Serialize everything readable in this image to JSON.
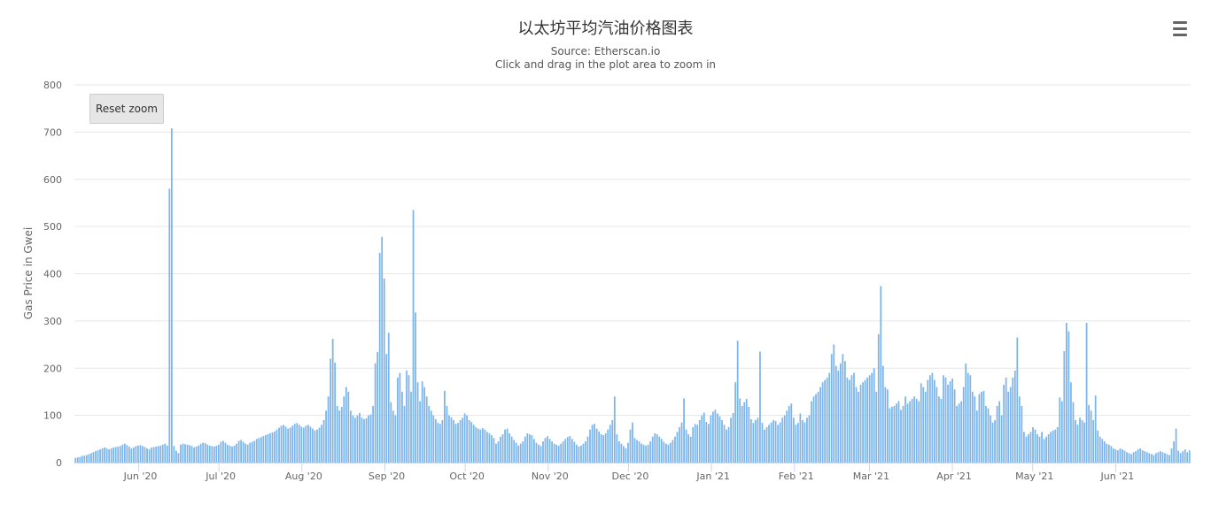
{
  "chart_data": {
    "type": "bar",
    "title": "以太坊平均汽油价格图表",
    "subtitle_lines": [
      "Source: Etherscan.io",
      "Click and drag in the plot area to zoom in"
    ],
    "ylabel": "Gas Price in Gwei",
    "xlabel": "",
    "ylim": [
      0,
      800
    ],
    "yticks": [
      0,
      100,
      200,
      300,
      400,
      500,
      600,
      700,
      800
    ],
    "x_start": "2020-05-08",
    "x_end": "2021-06-29",
    "xticks": [
      {
        "date": "2020-06-01",
        "label": "Jun '20"
      },
      {
        "date": "2020-07-01",
        "label": "Jul '20"
      },
      {
        "date": "2020-08-01",
        "label": "Aug '20"
      },
      {
        "date": "2020-09-01",
        "label": "Sep '20"
      },
      {
        "date": "2020-10-01",
        "label": "Oct '20"
      },
      {
        "date": "2020-11-01",
        "label": "Nov '20"
      },
      {
        "date": "2020-12-01",
        "label": "Dec '20"
      },
      {
        "date": "2021-01-01",
        "label": "Jan '21"
      },
      {
        "date": "2021-02-01",
        "label": "Feb '21"
      },
      {
        "date": "2021-03-01",
        "label": "Mar '21"
      },
      {
        "date": "2021-04-01",
        "label": "Apr '21"
      },
      {
        "date": "2021-05-01",
        "label": "May '21"
      },
      {
        "date": "2021-06-01",
        "label": "Jun '21"
      }
    ],
    "grid": true,
    "legend": "none",
    "bar_color": "#7cb5ec",
    "series": [
      {
        "values": [
          10,
          11,
          12,
          14,
          15,
          16,
          18,
          20,
          22,
          24,
          26,
          28,
          30,
          32,
          30,
          28,
          30,
          32,
          33,
          34,
          35,
          38,
          40,
          37,
          34,
          30,
          32,
          35,
          36,
          37,
          35,
          33,
          30,
          28,
          32,
          33,
          34,
          35,
          36,
          38,
          40,
          36,
          580,
          708,
          35,
          25,
          20,
          38,
          40,
          39,
          38,
          37,
          35,
          32,
          34,
          36,
          40,
          42,
          41,
          38,
          36,
          35,
          34,
          36,
          38,
          44,
          46,
          42,
          38,
          36,
          34,
          36,
          40,
          46,
          48,
          44,
          40,
          38,
          42,
          44,
          46,
          50,
          52,
          54,
          56,
          58,
          60,
          62,
          64,
          66,
          70,
          74,
          78,
          80,
          76,
          72,
          74,
          78,
          82,
          84,
          80,
          76,
          74,
          78,
          80,
          76,
          72,
          68,
          70,
          74,
          80,
          90,
          110,
          140,
          220,
          262,
          212,
          120,
          110,
          118,
          140,
          160,
          150,
          110,
          100,
          95,
          100,
          105,
          95,
          92,
          94,
          100,
          102,
          120,
          210,
          234,
          444,
          478,
          390,
          230,
          275,
          128,
          110,
          100,
          180,
          190,
          150,
          120,
          195,
          185,
          150,
          535,
          318,
          170,
          130,
          172,
          160,
          140,
          120,
          110,
          100,
          92,
          84,
          82,
          90,
          152,
          120,
          100,
          96,
          90,
          82,
          84,
          90,
          95,
          104,
          100,
          90,
          86,
          80,
          75,
          72,
          70,
          73,
          70,
          65,
          62,
          58,
          52,
          40,
          45,
          55,
          60,
          70,
          72,
          62,
          55,
          48,
          42,
          36,
          40,
          45,
          55,
          62,
          60,
          58,
          50,
          42,
          38,
          35,
          45,
          52,
          56,
          50,
          45,
          40,
          38,
          36,
          40,
          45,
          50,
          54,
          56,
          50,
          44,
          38,
          34,
          36,
          40,
          45,
          55,
          70,
          80,
          82,
          72,
          66,
          60,
          58,
          62,
          70,
          80,
          90,
          140,
          60,
          45,
          40,
          35,
          30,
          42,
          70,
          85,
          52,
          48,
          45,
          40,
          38,
          36,
          38,
          45,
          55,
          62,
          60,
          55,
          50,
          44,
          40,
          38,
          42,
          48,
          55,
          65,
          75,
          85,
          136,
          70,
          60,
          55,
          75,
          82,
          80,
          90,
          100,
          106,
          86,
          82,
          100,
          108,
          112,
          104,
          98,
          90,
          80,
          70,
          75,
          95,
          105,
          170,
          258,
          136,
          120,
          128,
          135,
          118,
          92,
          84,
          90,
          95,
          235,
          84,
          70,
          75,
          80,
          85,
          90,
          88,
          80,
          85,
          95,
          100,
          110,
          120,
          125,
          95,
          80,
          84,
          104,
          90,
          85,
          95,
          100,
          130,
          140,
          145,
          150,
          160,
          170,
          175,
          180,
          190,
          230,
          250,
          205,
          195,
          210,
          230,
          215,
          180,
          175,
          185,
          190,
          160,
          150,
          165,
          170,
          175,
          180,
          185,
          190,
          200,
          150,
          272,
          374,
          205,
          160,
          155,
          115,
          118,
          120,
          125,
          130,
          112,
          120,
          140,
          125,
          130,
          135,
          140,
          135,
          130,
          168,
          160,
          150,
          175,
          185,
          190,
          175,
          160,
          140,
          135,
          185,
          180,
          165,
          172,
          178,
          155,
          120,
          125,
          130,
          160,
          210,
          190,
          185,
          150,
          140,
          110,
          145,
          150,
          152,
          120,
          115,
          100,
          85,
          90,
          120,
          130,
          100,
          165,
          180,
          150,
          160,
          180,
          195,
          265,
          140,
          120,
          65,
          55,
          60,
          65,
          75,
          70,
          60,
          55,
          65,
          50,
          55,
          60,
          65,
          68,
          70,
          75,
          138,
          130,
          236,
          296,
          278,
          170,
          128,
          90,
          80,
          95,
          90,
          85,
          296,
          122,
          110,
          90,
          142,
          68,
          55,
          50,
          45,
          40,
          38,
          35,
          30,
          28,
          26,
          30,
          28,
          25,
          22,
          20,
          18,
          22,
          24,
          28,
          30,
          26,
          24,
          22,
          20,
          18,
          16,
          20,
          22,
          24,
          22,
          20,
          18,
          16,
          30,
          45,
          72,
          25,
          20,
          24,
          28,
          22,
          26
        ]
      }
    ]
  }
}
